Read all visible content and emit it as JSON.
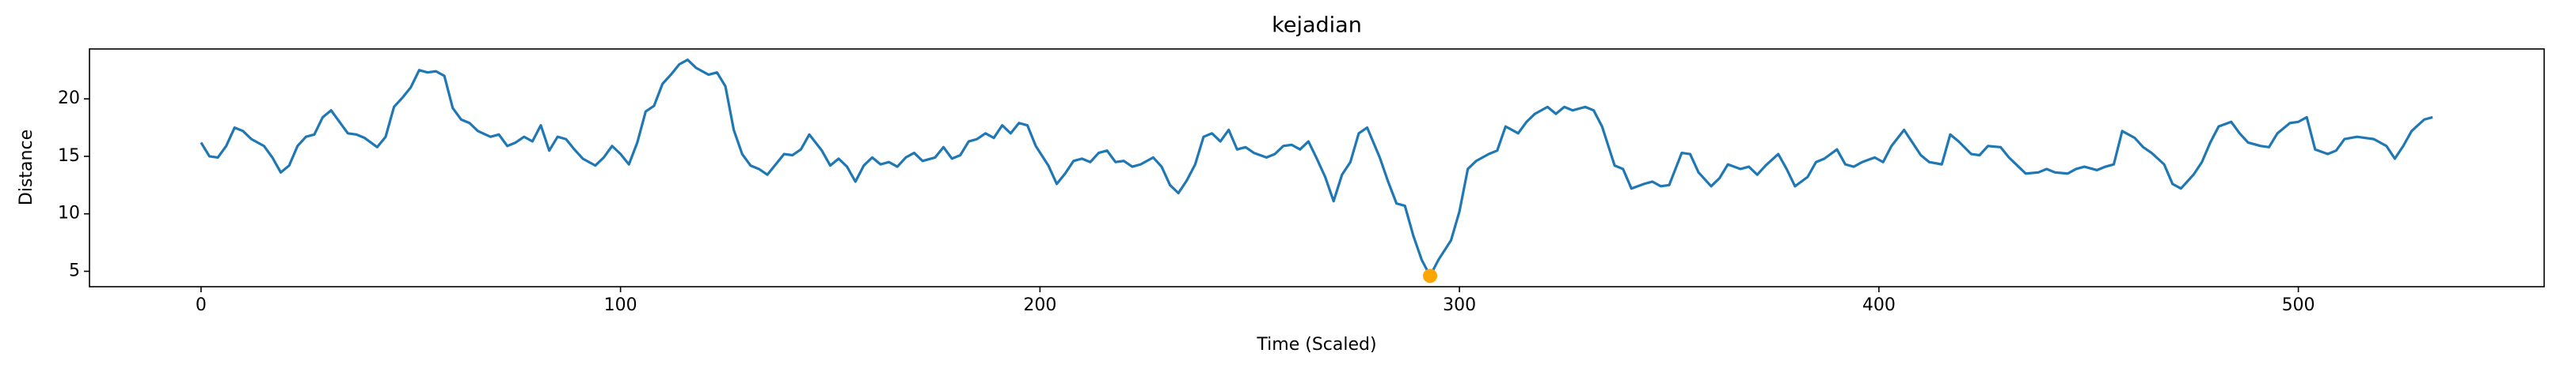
{
  "chart_data": {
    "type": "line",
    "title": "kejadian",
    "x_label": "Time (Scaled)",
    "y_label": "Distance",
    "x": [
      0,
      2,
      4,
      6,
      8,
      10,
      12,
      15,
      17,
      19,
      21,
      23,
      25,
      27,
      29,
      31,
      33,
      35,
      37,
      39,
      42,
      44,
      46,
      48,
      50,
      52,
      54,
      56,
      58,
      60,
      62,
      64,
      66,
      69,
      71,
      73,
      75,
      77,
      79,
      81,
      83,
      85,
      87,
      89,
      91,
      94,
      96,
      98,
      100,
      102,
      104,
      106,
      108,
      110,
      112,
      114,
      116,
      118,
      121,
      123,
      125,
      127,
      129,
      131,
      133,
      135,
      137,
      139,
      141,
      143,
      145,
      148,
      150,
      152,
      154,
      156,
      158,
      160,
      162,
      164,
      166,
      168,
      170,
      172,
      175,
      177,
      179,
      181,
      183,
      185,
      187,
      189,
      191,
      193,
      195,
      197,
      199,
      202,
      204,
      206,
      208,
      210,
      212,
      214,
      216,
      218,
      220,
      222,
      224,
      227,
      229,
      231,
      233,
      235,
      237,
      239,
      241,
      243,
      245,
      247,
      249,
      251,
      254,
      256,
      258,
      260,
      262,
      264,
      266,
      268,
      270,
      272,
      274,
      276,
      278,
      281,
      283,
      285,
      287,
      289,
      291,
      293,
      295,
      298,
      300,
      302,
      304,
      307,
      309,
      311,
      314,
      316,
      318,
      321,
      323,
      325,
      327,
      330,
      332,
      334,
      337,
      339,
      341,
      344,
      346,
      348,
      350,
      353,
      355,
      357,
      360,
      362,
      364,
      367,
      369,
      371,
      373,
      376,
      378,
      380,
      383,
      385,
      387,
      390,
      392,
      394,
      396,
      399,
      401,
      403,
      406,
      408,
      410,
      412,
      415,
      417,
      419,
      422,
      424,
      426,
      429,
      431,
      433,
      435,
      438,
      440,
      442,
      445,
      447,
      449,
      452,
      454,
      456,
      458,
      461,
      463,
      465,
      468,
      470,
      472,
      475,
      477,
      479,
      481,
      484,
      486,
      488,
      491,
      493,
      495,
      498,
      500,
      502,
      504,
      507,
      509,
      511,
      514,
      516,
      518,
      521,
      523,
      525,
      527,
      530,
      532
    ],
    "values": [
      16.2,
      15,
      14.9,
      15.9,
      17.5,
      17.2,
      16.5,
      15.9,
      14.9,
      13.6,
      14.2,
      15.9,
      16.7,
      16.9,
      18.4,
      19,
      18,
      17,
      16.9,
      16.6,
      15.8,
      16.7,
      19.3,
      20.1,
      21,
      22.5,
      22.3,
      22.4,
      22,
      19.2,
      18.2,
      17.9,
      17.2,
      16.7,
      16.9,
      15.9,
      16.2,
      16.7,
      16.3,
      17.7,
      15.5,
      16.7,
      16.5,
      15.6,
      14.8,
      14.2,
      14.9,
      15.9,
      15.2,
      14.3,
      16.2,
      18.9,
      19.4,
      21.3,
      22.1,
      23,
      23.4,
      22.7,
      22.1,
      22.3,
      21.1,
      17.3,
      15.2,
      14.2,
      13.9,
      13.4,
      14.3,
      15.2,
      15.1,
      15.6,
      16.9,
      15.5,
      14.2,
      14.8,
      14.1,
      12.8,
      14.2,
      14.9,
      14.3,
      14.5,
      14.1,
      14.9,
      15.3,
      14.6,
      14.9,
      15.8,
      14.8,
      15.1,
      16.3,
      16.5,
      17,
      16.6,
      17.7,
      17,
      17.9,
      17.7,
      15.9,
      14.2,
      12.6,
      13.5,
      14.6,
      14.8,
      14.5,
      15.3,
      15.5,
      14.5,
      14.6,
      14.1,
      14.3,
      14.9,
      14.1,
      12.5,
      11.8,
      12.9,
      14.3,
      16.7,
      17,
      16.3,
      17.3,
      15.6,
      15.8,
      15.3,
      14.9,
      15.2,
      15.9,
      16,
      15.6,
      16.3,
      14.8,
      13.2,
      11.1,
      13.4,
      14.5,
      17,
      17.5,
      14.9,
      12.8,
      10.9,
      10.7,
      8.1,
      6.0,
      4.6,
      6.0,
      7.7,
      10.2,
      13.9,
      14.6,
      15.2,
      15.5,
      17.6,
      17,
      18,
      18.7,
      19.3,
      18.7,
      19.3,
      19,
      19.3,
      19,
      17.6,
      14.2,
      13.9,
      12.2,
      12.6,
      12.8,
      12.4,
      12.5,
      15.3,
      15.2,
      13.6,
      12.4,
      13.1,
      14.3,
      13.9,
      14.1,
      13.4,
      14.2,
      15.2,
      13.9,
      12.4,
      13.2,
      14.5,
      14.8,
      15.6,
      14.3,
      14.1,
      14.5,
      14.9,
      14.5,
      15.9,
      17.3,
      16.2,
      15.1,
      14.5,
      14.3,
      16.9,
      16.3,
      15.2,
      15.1,
      15.9,
      15.8,
      14.9,
      14.2,
      13.5,
      13.6,
      13.9,
      13.6,
      13.5,
      13.9,
      14.1,
      13.8,
      14.1,
      14.3,
      17.2,
      16.6,
      15.8,
      15.3,
      14.3,
      12.6,
      12.2,
      13.4,
      14.5,
      16.2,
      17.6,
      18,
      17,
      16.2,
      15.9,
      15.8,
      17,
      17.9,
      18,
      18.4,
      15.6,
      15.2,
      15.5,
      16.5,
      16.7,
      16.6,
      16.5,
      15.9,
      14.8,
      15.9,
      17.2,
      18.2,
      18.4
    ],
    "color": "#1f77b4",
    "markers": {
      "x": [
        293
      ],
      "values": [
        4.6
      ],
      "color": "#ffa500"
    },
    "xlim": [
      -26.6,
      558.6
    ],
    "xticks": [
      0,
      100,
      200,
      300,
      400,
      500
    ],
    "ylim": [
      3.66,
      24.34
    ],
    "yticks": [
      5,
      10,
      15,
      20
    ],
    "grid": false
  }
}
